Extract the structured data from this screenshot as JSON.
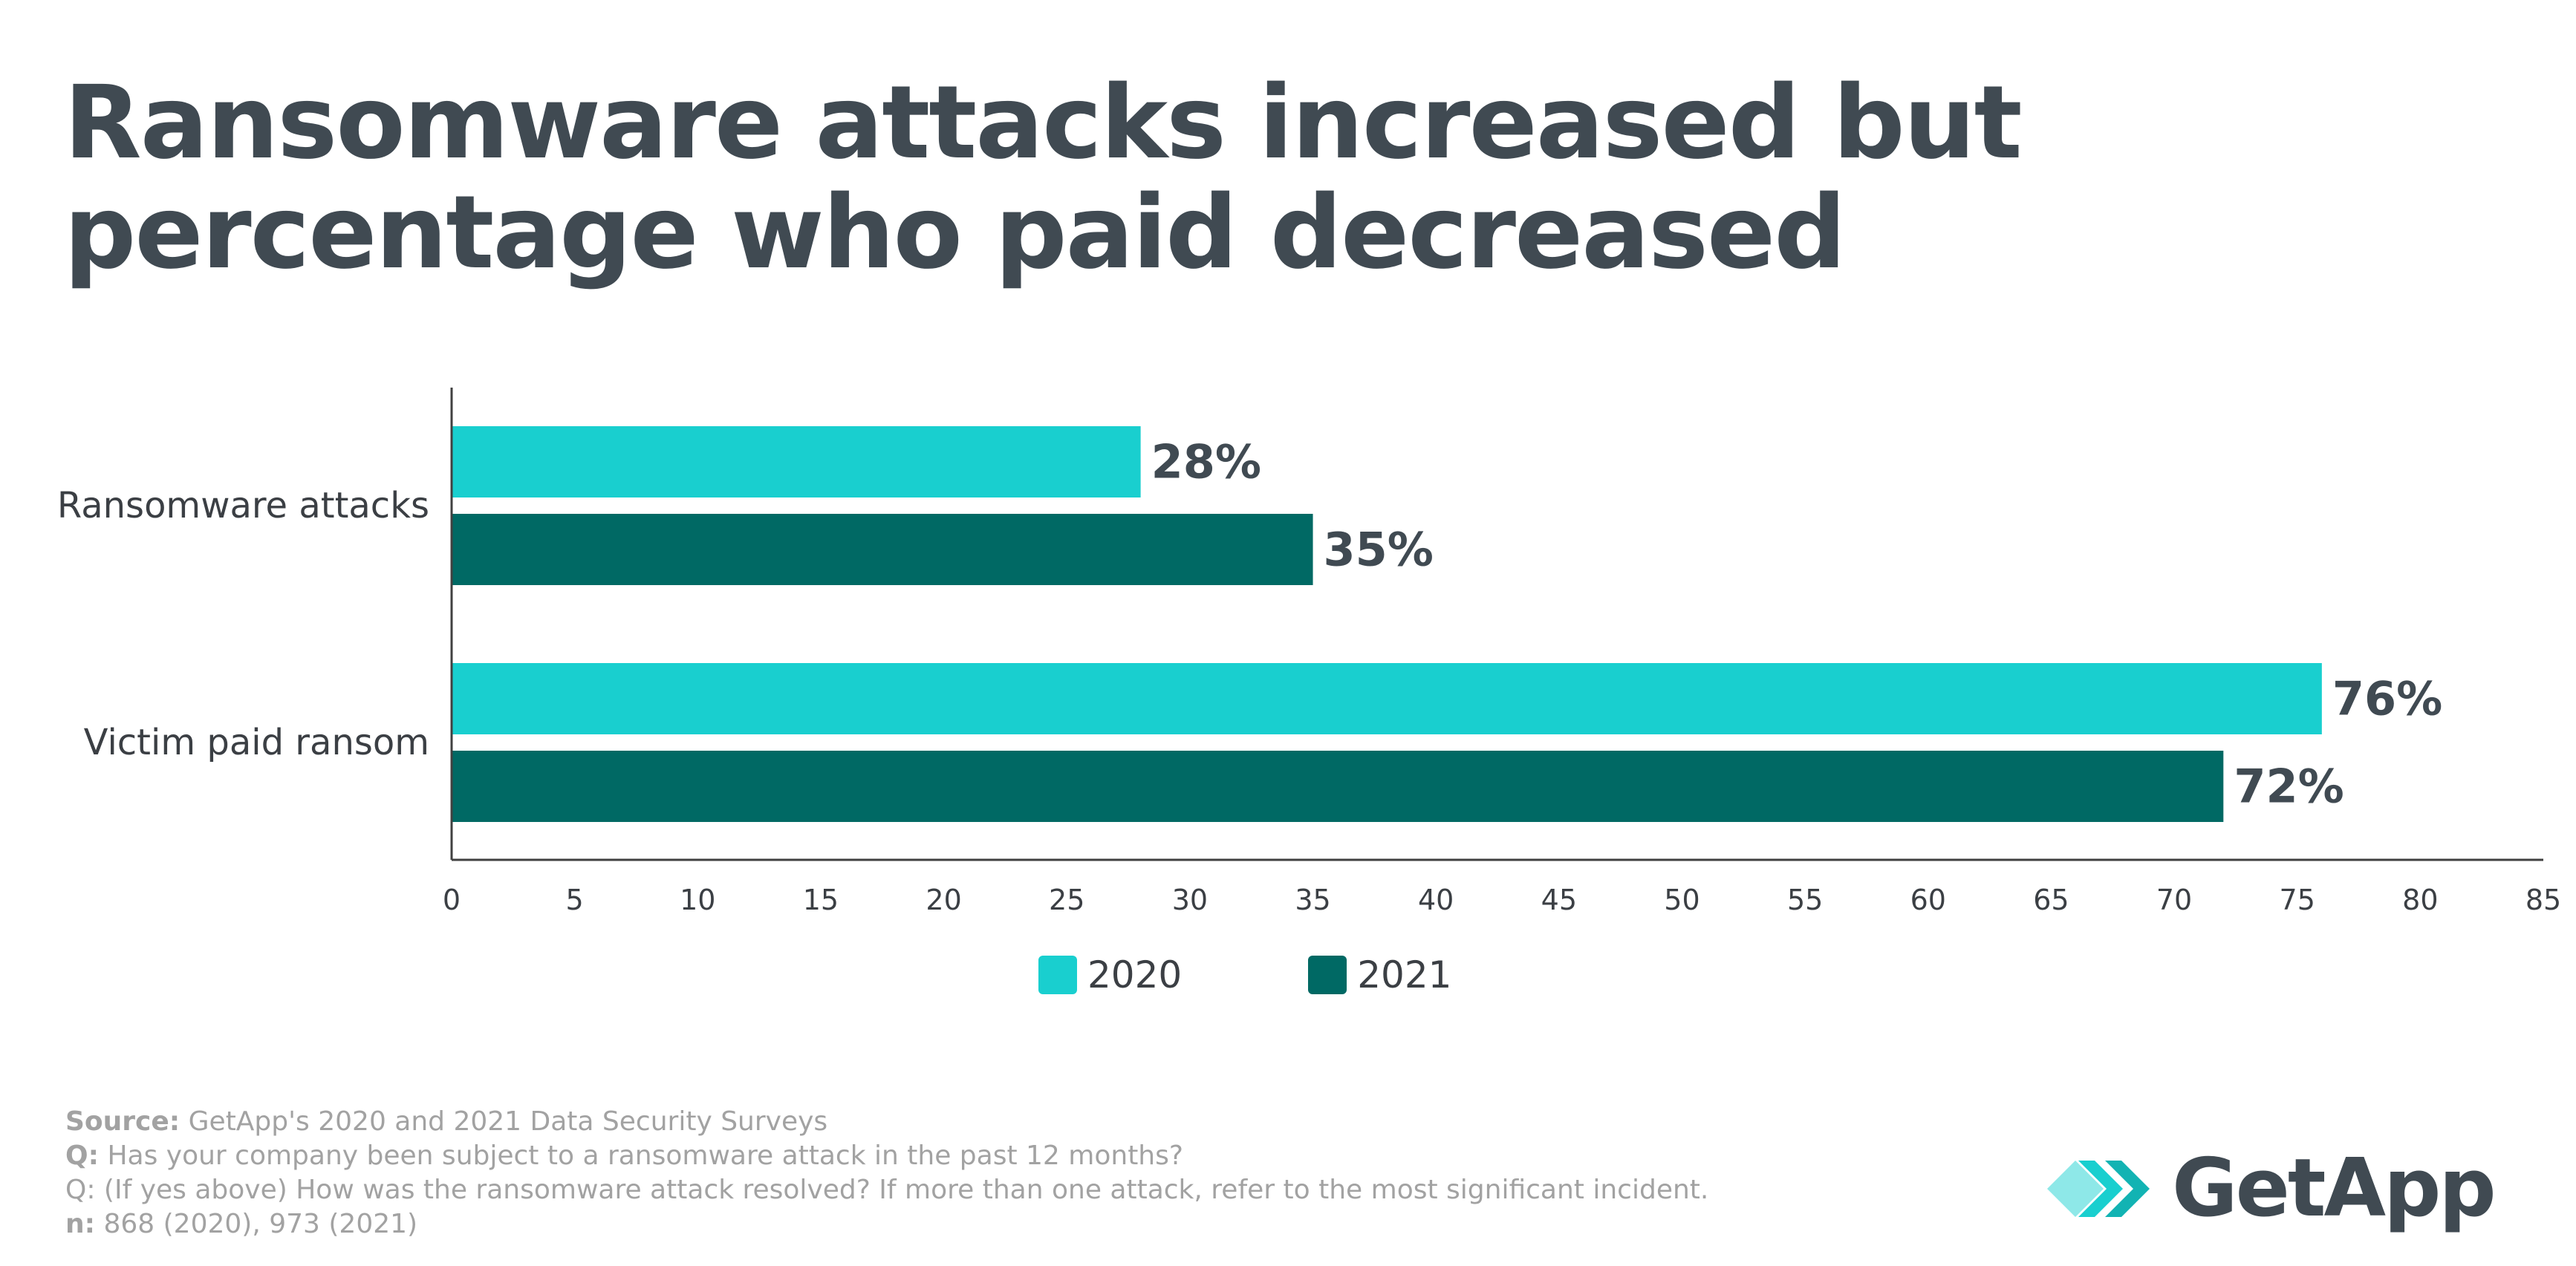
{
  "title": "Ransomware attacks increased but percentage who paid decreased",
  "colors": {
    "series_2020": "#19cfcf",
    "series_2021": "#006964",
    "text_dark": "#404a52",
    "footer_text": "#a2a2a2",
    "axis": "#404040"
  },
  "chart_data": {
    "type": "bar",
    "orientation": "horizontal",
    "categories": [
      "Ransomware attacks",
      "Victim paid ransom"
    ],
    "series": [
      {
        "name": "2020",
        "values": [
          28,
          76
        ],
        "labels": [
          "28%",
          "76%"
        ]
      },
      {
        "name": "2021",
        "values": [
          35,
          72
        ],
        "labels": [
          "35%",
          "72%"
        ]
      }
    ],
    "xlim": [
      0,
      85
    ],
    "xticks": [
      0,
      5,
      10,
      15,
      20,
      25,
      30,
      35,
      40,
      45,
      50,
      55,
      60,
      65,
      70,
      75,
      80,
      85
    ],
    "xlabel": "",
    "ylabel": "",
    "grid": false,
    "legend_position": "bottom-center"
  },
  "legend": {
    "items": [
      {
        "label": "2020"
      },
      {
        "label": "2021"
      }
    ]
  },
  "footer": {
    "source_label": "Source:",
    "source_text": " GetApp's 2020 and 2021 Data Security Surveys",
    "q1_label": "Q:",
    "q1_text": " Has your company been subject to a ransomware attack in the past 12 months?",
    "q2_text": "Q: (If yes above) How was the ransomware attack resolved? If more than one attack, refer to the most significant incident.",
    "n_label": "n:",
    "n_text": " 868 (2020), 973 (2021)"
  },
  "logo": {
    "name": "GetApp"
  }
}
